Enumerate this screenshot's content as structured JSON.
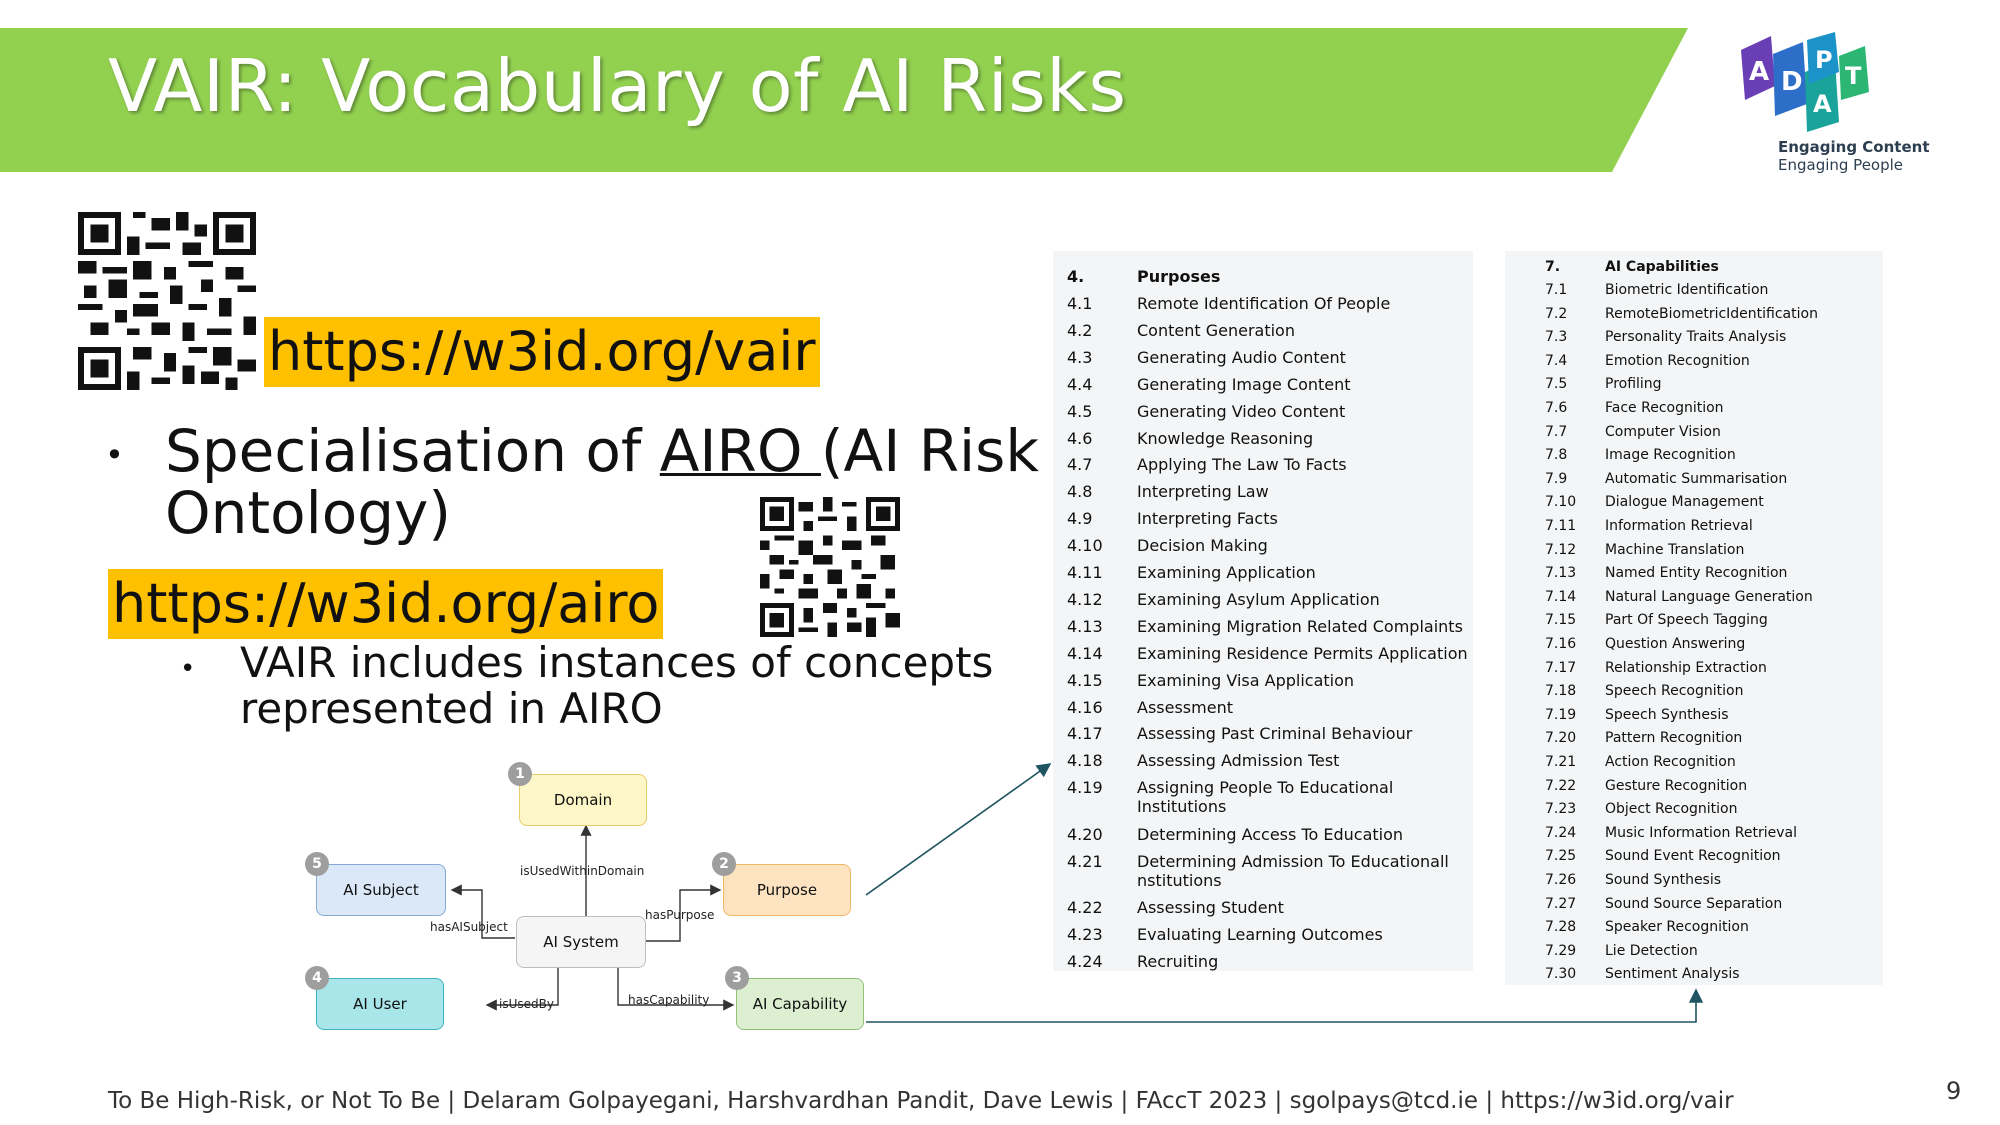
{
  "slide": {
    "title": "VAIR: Vocabulary of AI Risks",
    "page_number": "9",
    "footer": "To Be High-Risk, or Not To Be | Delaram Golpayegani, Harshvardhan Pandit, Dave Lewis | FAccT 2023 | sgolpays@tcd.ie | https://w3id.org/vair"
  },
  "colors": {
    "banner": "#92d050",
    "highlight": "#ffc000",
    "logo_purple": "#6a3fb5",
    "logo_blue": "#2d6fc8",
    "logo_teal": "#1aa39a"
  },
  "logo": {
    "letters": [
      "A",
      "D",
      "A",
      "P",
      "T"
    ],
    "line1": "Engaging Content",
    "line2": "Engaging People"
  },
  "links": {
    "vair": "https://w3id.org/vair",
    "airo": "https://w3id.org/airo"
  },
  "bullets": {
    "b1_pre": "Specialisation of ",
    "b1_link": "AIRO ",
    "b1_post": "(AI Risk Ontology)",
    "b2": "VAIR includes instances of concepts represented in AIRO"
  },
  "diagram": {
    "nodes": {
      "domain": {
        "num": "1",
        "label": "Domain"
      },
      "purpose": {
        "num": "2",
        "label": "Purpose"
      },
      "capability": {
        "num": "3",
        "label": "AI Capability"
      },
      "user": {
        "num": "4",
        "label": "AI User"
      },
      "subject": {
        "num": "5",
        "label": "AI Subject"
      },
      "system": {
        "label": "AI System"
      }
    },
    "edges": {
      "domain": "isUsedWithinDomain",
      "purpose": "hasPurpose",
      "subject": "hasAISubject",
      "user": "isUsedBy",
      "capability": "hasCapability"
    }
  },
  "purposes": {
    "num": "4.",
    "title": "Purposes",
    "items": [
      {
        "num": "4.1",
        "label": "Remote Identification Of People"
      },
      {
        "num": "4.2",
        "label": "Content Generation"
      },
      {
        "num": "4.3",
        "label": "Generating Audio Content"
      },
      {
        "num": "4.4",
        "label": "Generating Image Content"
      },
      {
        "num": "4.5",
        "label": "Generating Video Content"
      },
      {
        "num": "4.6",
        "label": "Knowledge Reasoning"
      },
      {
        "num": "4.7",
        "label": "Applying The Law To Facts"
      },
      {
        "num": "4.8",
        "label": "Interpreting Law"
      },
      {
        "num": "4.9",
        "label": "Interpreting Facts"
      },
      {
        "num": "4.10",
        "label": "Decision Making"
      },
      {
        "num": "4.11",
        "label": "Examining Application"
      },
      {
        "num": "4.12",
        "label": "Examining Asylum Application"
      },
      {
        "num": "4.13",
        "label": "Examining Migration Related Complaints"
      },
      {
        "num": "4.14",
        "label": "Examining Residence Permits Application"
      },
      {
        "num": "4.15",
        "label": "Examining Visa Application"
      },
      {
        "num": "4.16",
        "label": "Assessment"
      },
      {
        "num": "4.17",
        "label": "Assessing Past Criminal Behaviour"
      },
      {
        "num": "4.18",
        "label": "Assessing Admission Test"
      },
      {
        "num": "4.19",
        "label": "Assigning People To Educational Institutions"
      },
      {
        "num": "4.20",
        "label": "Determining Access To Education"
      },
      {
        "num": "4.21",
        "label": "Determining Admission To Educationall nstitutions"
      },
      {
        "num": "4.22",
        "label": "Assessing Student"
      },
      {
        "num": "4.23",
        "label": "Evaluating Learning Outcomes"
      },
      {
        "num": "4.24",
        "label": "Recruiting"
      }
    ]
  },
  "capabilities": {
    "num": "7.",
    "title": "AI Capabilities",
    "items": [
      {
        "num": "7.1",
        "label": "Biometric Identification"
      },
      {
        "num": "7.2",
        "label": "RemoteBiometricIdentification"
      },
      {
        "num": "7.3",
        "label": "Personality Traits Analysis"
      },
      {
        "num": "7.4",
        "label": "Emotion Recognition"
      },
      {
        "num": "7.5",
        "label": "Profiling"
      },
      {
        "num": "7.6",
        "label": "Face Recognition"
      },
      {
        "num": "7.7",
        "label": "Computer Vision"
      },
      {
        "num": "7.8",
        "label": "Image Recognition"
      },
      {
        "num": "7.9",
        "label": "Automatic Summarisation"
      },
      {
        "num": "7.10",
        "label": "Dialogue Management"
      },
      {
        "num": "7.11",
        "label": "Information Retrieval"
      },
      {
        "num": "7.12",
        "label": "Machine Translation"
      },
      {
        "num": "7.13",
        "label": "Named Entity Recognition"
      },
      {
        "num": "7.14",
        "label": "Natural Language Generation"
      },
      {
        "num": "7.15",
        "label": "Part Of Speech Tagging"
      },
      {
        "num": "7.16",
        "label": "Question Answering"
      },
      {
        "num": "7.17",
        "label": "Relationship Extraction"
      },
      {
        "num": "7.18",
        "label": "Speech Recognition"
      },
      {
        "num": "7.19",
        "label": "Speech Synthesis"
      },
      {
        "num": "7.20",
        "label": "Pattern Recognition"
      },
      {
        "num": "7.21",
        "label": "Action Recognition"
      },
      {
        "num": "7.22",
        "label": "Gesture Recognition"
      },
      {
        "num": "7.23",
        "label": "Object Recognition"
      },
      {
        "num": "7.24",
        "label": "Music Information Retrieval"
      },
      {
        "num": "7.25",
        "label": "Sound Event Recognition"
      },
      {
        "num": "7.26",
        "label": "Sound Synthesis"
      },
      {
        "num": "7.27",
        "label": "Sound Source Separation"
      },
      {
        "num": "7.28",
        "label": "Speaker Recognition"
      },
      {
        "num": "7.29",
        "label": "Lie Detection"
      },
      {
        "num": "7.30",
        "label": "Sentiment Analysis"
      }
    ]
  }
}
